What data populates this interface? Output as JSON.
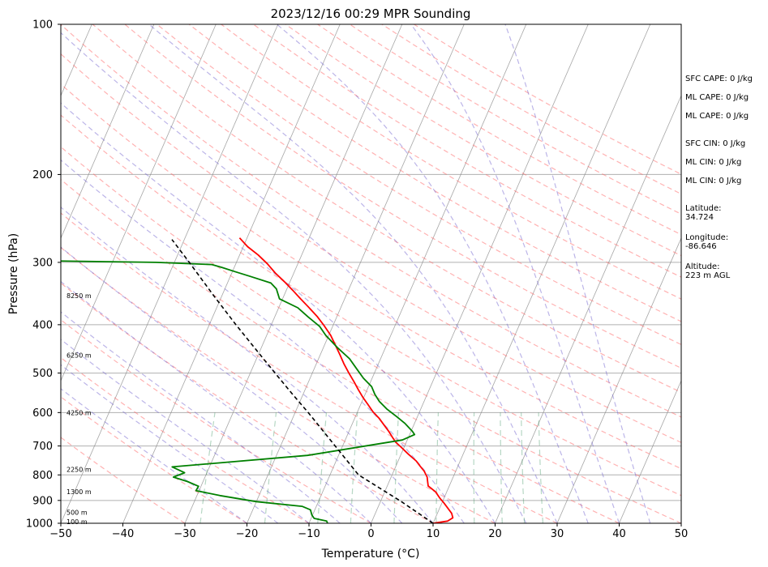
{
  "chart_data": {
    "type": "line",
    "title": "2023/12/16 00:29 MPR Sounding",
    "xlabel": "Temperature (°C)",
    "ylabel": "Pressure (hPa)",
    "xlim": [
      -50,
      50
    ],
    "ylim": [
      1000,
      100
    ],
    "y_scale": "log",
    "skew": "skew-T",
    "x_ticks": [
      -50,
      -40,
      -30,
      -20,
      -10,
      0,
      10,
      20,
      30,
      40,
      50
    ],
    "x_tick_labels": [
      "−50",
      "−40",
      "−30",
      "−20",
      "−10",
      "0",
      "10",
      "20",
      "30",
      "40",
      "50"
    ],
    "y_ticks": [
      1000,
      900,
      800,
      700,
      600,
      500,
      400,
      300,
      200,
      100
    ],
    "y_tick_labels": [
      "1000",
      "900",
      "800",
      "700",
      "600",
      "500",
      "400",
      "300",
      "200",
      "100"
    ],
    "series": [
      {
        "color": "#ff0000",
        "points": [
          [
            10.0,
            1000
          ],
          [
            12.2,
            990
          ],
          [
            12.8,
            975
          ],
          [
            12.3,
            955
          ],
          [
            11.2,
            930
          ],
          [
            10.3,
            910
          ],
          [
            9.3,
            890
          ],
          [
            8.2,
            865
          ],
          [
            6.6,
            842
          ],
          [
            6.2,
            825
          ],
          [
            5.8,
            808
          ],
          [
            4.9,
            786
          ],
          [
            3.9,
            768
          ],
          [
            2.9,
            750
          ],
          [
            1.1,
            726
          ],
          [
            -0.4,
            705
          ],
          [
            -1.7,
            688
          ],
          [
            -2.6,
            672
          ],
          [
            -3.6,
            654
          ],
          [
            -4.7,
            637
          ],
          [
            -6.0,
            617
          ],
          [
            -7.5,
            598
          ],
          [
            -8.7,
            580
          ],
          [
            -10.1,
            560
          ],
          [
            -11.4,
            540
          ],
          [
            -12.7,
            520
          ],
          [
            -14.1,
            500
          ],
          [
            -15.5,
            480
          ],
          [
            -16.8,
            460
          ],
          [
            -18.2,
            440
          ],
          [
            -19.7,
            420
          ],
          [
            -21.4,
            402
          ],
          [
            -23.2,
            385
          ],
          [
            -25.2,
            369
          ],
          [
            -27.1,
            355
          ],
          [
            -29.0,
            341
          ],
          [
            -30.9,
            328
          ],
          [
            -33.0,
            315
          ],
          [
            -34.9,
            302
          ],
          [
            -37.0,
            290
          ],
          [
            -39.3,
            279
          ],
          [
            -41.2,
            268
          ]
        ],
        "line_style": "solid"
      },
      {
        "color": "#008000",
        "points": [
          [
            -7.0,
            1000
          ],
          [
            -7.3,
            990
          ],
          [
            -9.5,
            978
          ],
          [
            -10.1,
            963
          ],
          [
            -10.7,
            940
          ],
          [
            -12.3,
            925
          ],
          [
            -20.0,
            905
          ],
          [
            -26.3,
            880
          ],
          [
            -30.5,
            860
          ],
          [
            -30.4,
            843
          ],
          [
            -32.5,
            825
          ],
          [
            -35.1,
            808
          ],
          [
            -33.6,
            792
          ],
          [
            -36.0,
            771
          ],
          [
            -15.0,
            731
          ],
          [
            -0.8,
            681
          ],
          [
            0.8,
            664
          ],
          [
            0.2,
            654
          ],
          [
            -1.6,
            630
          ],
          [
            -3.3,
            612
          ],
          [
            -5.5,
            590
          ],
          [
            -7.2,
            570
          ],
          [
            -8.4,
            552
          ],
          [
            -9.5,
            532
          ],
          [
            -11.4,
            512
          ],
          [
            -13.0,
            492
          ],
          [
            -15.0,
            468
          ],
          [
            -17.8,
            444
          ],
          [
            -20.5,
            420
          ],
          [
            -22.1,
            403
          ],
          [
            -24.6,
            386
          ],
          [
            -26.9,
            370
          ],
          [
            -30.5,
            355
          ],
          [
            -31.7,
            339
          ],
          [
            -33.0,
            330
          ],
          [
            -36.8,
            320
          ],
          [
            -39.6,
            313
          ],
          [
            -42.0,
            307
          ],
          [
            -43.8,
            303
          ],
          [
            -53.0,
            300
          ],
          [
            -78.0,
            297
          ]
        ],
        "line_style": "solid"
      },
      {
        "color": "#000000",
        "points": [
          [
            10.0,
            1000
          ],
          [
            6.6,
            950
          ],
          [
            3.0,
            900
          ],
          [
            -1.1,
            850
          ],
          [
            -5.4,
            800
          ],
          [
            -8.2,
            750
          ],
          [
            -11.2,
            700
          ],
          [
            -14.4,
            650
          ],
          [
            -17.9,
            600
          ],
          [
            -21.8,
            550
          ],
          [
            -26.0,
            500
          ],
          [
            -30.6,
            450
          ],
          [
            -35.7,
            400
          ],
          [
            -41.3,
            350
          ],
          [
            -47.6,
            300
          ],
          [
            -52.0,
            270
          ]
        ],
        "line_style": "dashed"
      }
    ],
    "height_labels": [
      {
        "p": 993,
        "text": "100 m"
      },
      {
        "p": 950,
        "text": "500 m"
      },
      {
        "p": 864,
        "text": "1300 m"
      },
      {
        "p": 780,
        "text": "2250 m"
      },
      {
        "p": 600,
        "text": "4250 m"
      },
      {
        "p": 460,
        "text": "6250 m"
      },
      {
        "p": 350,
        "text": "8250 m"
      }
    ],
    "background_lines": {
      "isotherms_color": "#888888",
      "dry_adiabats_color": "#ff6666",
      "moist_adiabats_color": "#6a5acd",
      "mixing_ratio_color": "#2e8b57"
    },
    "stats": {
      "sfc_cape": "SFC CAPE: 0 J/kg",
      "ml_cape_1": "ML CAPE: 0 J/kg",
      "ml_cape_2": "ML CAPE: 0 J/kg",
      "sfc_cin": "SFC CIN: 0 J/kg",
      "ml_cin_1": "ML CIN: 0 J/kg",
      "ml_cin_2": "ML CIN: 0 J/kg",
      "latitude_label": "Latitude:",
      "latitude_value": "34.724",
      "longitude_label": "Longitude:",
      "longitude_value": "-86.646",
      "altitude_label": "Altitude:",
      "altitude_value": "223 m AGL"
    }
  }
}
